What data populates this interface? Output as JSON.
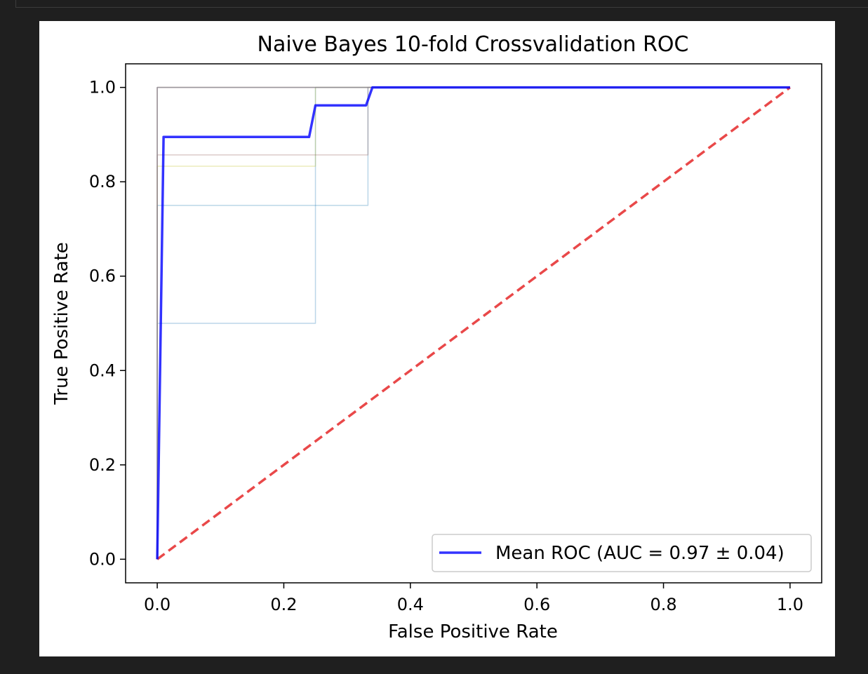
{
  "chart_data": {
    "type": "line",
    "title": "Naive Bayes 10-fold Crossvalidation ROC",
    "xlabel": "False Positive Rate",
    "ylabel": "True Positive Rate",
    "xlim": [
      -0.05,
      1.05
    ],
    "ylim": [
      -0.05,
      1.05
    ],
    "xticks": [
      0.0,
      0.2,
      0.4,
      0.6,
      0.8,
      1.0
    ],
    "xtick_labels": [
      "0.0",
      "0.2",
      "0.4",
      "0.6",
      "0.8",
      "1.0"
    ],
    "yticks": [
      0.0,
      0.2,
      0.4,
      0.6,
      0.8,
      1.0
    ],
    "ytick_labels": [
      "0.0",
      "0.2",
      "0.4",
      "0.6",
      "0.8",
      "1.0"
    ],
    "grid": false,
    "legend_position": "lower-right",
    "series": [
      {
        "name": "Mean ROC (AUC = 0.97 ± 0.04)",
        "color": "#0000ff",
        "style": "solid",
        "opacity": 0.8,
        "width": 3.5,
        "x": [
          0.0,
          0.01,
          0.24,
          0.25,
          0.33,
          0.34,
          1.0
        ],
        "y": [
          0.0,
          0.895,
          0.895,
          0.962,
          0.962,
          1.0,
          1.0
        ]
      },
      {
        "color": "#e41a1c",
        "style": "dashed",
        "opacity": 0.8,
        "width": 3.5,
        "x": [
          0.0,
          1.0
        ],
        "y": [
          0.0,
          1.0
        ]
      },
      {
        "color": "#1f77b4",
        "style": "solid",
        "opacity": 0.3,
        "width": 1.5,
        "x": [
          0.0,
          0.0,
          0.25,
          0.25,
          1.0
        ],
        "y": [
          0.0,
          0.5,
          0.5,
          1.0,
          1.0
        ]
      },
      {
        "color": "#1f77b4",
        "style": "solid",
        "opacity": 0.3,
        "width": 1.5,
        "x": [
          0.0,
          0.0,
          0.333,
          0.333,
          1.0
        ],
        "y": [
          0.0,
          0.75,
          0.75,
          1.0,
          1.0
        ]
      },
      {
        "color": "#bcbd22",
        "style": "solid",
        "opacity": 0.3,
        "width": 1.5,
        "x": [
          0.0,
          0.0,
          0.25,
          0.25,
          1.0
        ],
        "y": [
          0.0,
          0.833,
          0.833,
          1.0,
          1.0
        ]
      },
      {
        "color": "#8c564b",
        "style": "solid",
        "opacity": 0.3,
        "width": 1.5,
        "x": [
          0.0,
          0.0,
          0.333,
          0.333,
          1.0
        ],
        "y": [
          0.0,
          0.857,
          0.857,
          1.0,
          1.0
        ]
      },
      {
        "color": "#2ca02c",
        "style": "solid",
        "opacity": 0.3,
        "width": 1.5,
        "x": [
          0.0,
          0.0,
          0.25,
          0.25,
          1.0
        ],
        "y": [
          0.0,
          1.0,
          1.0,
          1.0,
          1.0
        ]
      },
      {
        "color": "#d62728",
        "style": "solid",
        "opacity": 0.3,
        "width": 1.5,
        "x": [
          0.0,
          0.0,
          1.0
        ],
        "y": [
          0.0,
          1.0,
          1.0
        ]
      },
      {
        "color": "#9467bd",
        "style": "solid",
        "opacity": 0.3,
        "width": 1.5,
        "x": [
          0.0,
          0.0,
          1.0
        ],
        "y": [
          0.0,
          1.0,
          1.0
        ]
      },
      {
        "color": "#ff7f0e",
        "style": "solid",
        "opacity": 0.3,
        "width": 1.5,
        "x": [
          0.0,
          0.0,
          1.0
        ],
        "y": [
          0.0,
          1.0,
          1.0
        ]
      },
      {
        "color": "#e377c2",
        "style": "solid",
        "opacity": 0.3,
        "width": 1.5,
        "x": [
          0.0,
          0.0,
          1.0
        ],
        "y": [
          0.0,
          1.0,
          1.0
        ]
      },
      {
        "color": "#17becf",
        "style": "solid",
        "opacity": 0.3,
        "width": 1.5,
        "x": [
          0.0,
          0.0,
          0.333,
          0.333,
          1.0
        ],
        "y": [
          0.0,
          1.0,
          1.0,
          1.0,
          1.0
        ]
      }
    ]
  }
}
